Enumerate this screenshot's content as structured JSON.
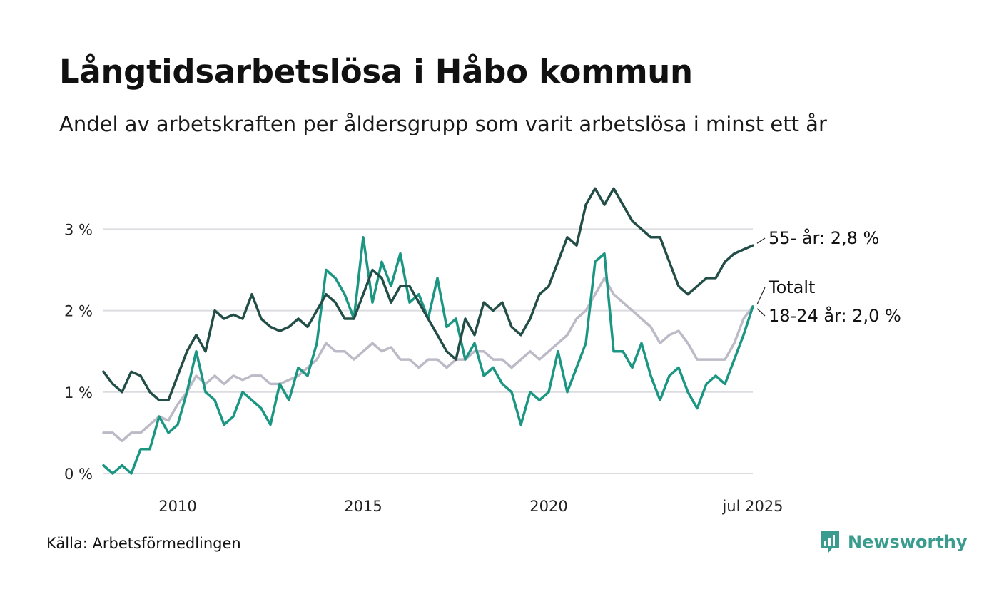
{
  "header": {
    "title": "Långtidsarbetslösa i Håbo kommun",
    "subtitle": "Andel av arbetskraften per åldersgrupp som varit arbetslösa i minst ett år"
  },
  "footer": {
    "source": "Källa: Arbetsförmedlingen",
    "brand": "Newsworthy",
    "brand_icon": "newsworthy-logo-icon",
    "brand_color": "#3a9c8e"
  },
  "chart_data": {
    "type": "line",
    "title": "Långtidsarbetslösa i Håbo kommun",
    "subtitle": "Andel av arbetskraften per åldersgrupp som varit arbetslösa i minst ett år",
    "xlabel": "",
    "ylabel": "",
    "x_range": [
      "2008-01",
      "2025-07"
    ],
    "ylim": [
      0,
      3.8
    ],
    "y_ticks": [
      {
        "value": 0,
        "label": "0 %"
      },
      {
        "value": 1,
        "label": "1 %"
      },
      {
        "value": 2,
        "label": "2 %"
      },
      {
        "value": 3,
        "label": "3 %"
      }
    ],
    "x_ticks": [
      {
        "value": "2010-01",
        "label": "2010"
      },
      {
        "value": "2015-01",
        "label": "2015"
      },
      {
        "value": "2020-01",
        "label": "2020"
      },
      {
        "value": "2025-07",
        "label": "jul 2025"
      }
    ],
    "grid": "horizontal",
    "legend": "end-labels",
    "series": [
      {
        "name": "Totalt",
        "end_label": "Totalt",
        "color": "#bdbac7",
        "points": [
          [
            "2008-01",
            0.5
          ],
          [
            "2008-04",
            0.5
          ],
          [
            "2008-07",
            0.4
          ],
          [
            "2008-10",
            0.5
          ],
          [
            "2009-01",
            0.5
          ],
          [
            "2009-04",
            0.6
          ],
          [
            "2009-07",
            0.7
          ],
          [
            "2009-10",
            0.65
          ],
          [
            "2010-01",
            0.85
          ],
          [
            "2010-04",
            1.0
          ],
          [
            "2010-07",
            1.2
          ],
          [
            "2010-10",
            1.1
          ],
          [
            "2011-01",
            1.2
          ],
          [
            "2011-04",
            1.1
          ],
          [
            "2011-07",
            1.2
          ],
          [
            "2011-10",
            1.15
          ],
          [
            "2012-01",
            1.2
          ],
          [
            "2012-04",
            1.2
          ],
          [
            "2012-07",
            1.1
          ],
          [
            "2012-10",
            1.1
          ],
          [
            "2013-01",
            1.15
          ],
          [
            "2013-04",
            1.2
          ],
          [
            "2013-07",
            1.3
          ],
          [
            "2013-10",
            1.4
          ],
          [
            "2014-01",
            1.6
          ],
          [
            "2014-04",
            1.5
          ],
          [
            "2014-07",
            1.5
          ],
          [
            "2014-10",
            1.4
          ],
          [
            "2015-01",
            1.5
          ],
          [
            "2015-04",
            1.6
          ],
          [
            "2015-07",
            1.5
          ],
          [
            "2015-10",
            1.55
          ],
          [
            "2016-01",
            1.4
          ],
          [
            "2016-04",
            1.4
          ],
          [
            "2016-07",
            1.3
          ],
          [
            "2016-10",
            1.4
          ],
          [
            "2017-01",
            1.4
          ],
          [
            "2017-04",
            1.3
          ],
          [
            "2017-07",
            1.4
          ],
          [
            "2017-10",
            1.4
          ],
          [
            "2018-01",
            1.5
          ],
          [
            "2018-04",
            1.5
          ],
          [
            "2018-07",
            1.4
          ],
          [
            "2018-10",
            1.4
          ],
          [
            "2019-01",
            1.3
          ],
          [
            "2019-04",
            1.4
          ],
          [
            "2019-07",
            1.5
          ],
          [
            "2019-10",
            1.4
          ],
          [
            "2020-01",
            1.5
          ],
          [
            "2020-04",
            1.6
          ],
          [
            "2020-07",
            1.7
          ],
          [
            "2020-10",
            1.9
          ],
          [
            "2021-01",
            2.0
          ],
          [
            "2021-04",
            2.2
          ],
          [
            "2021-07",
            2.4
          ],
          [
            "2021-10",
            2.2
          ],
          [
            "2022-01",
            2.1
          ],
          [
            "2022-04",
            2.0
          ],
          [
            "2022-07",
            1.9
          ],
          [
            "2022-10",
            1.8
          ],
          [
            "2023-01",
            1.6
          ],
          [
            "2023-04",
            1.7
          ],
          [
            "2023-07",
            1.75
          ],
          [
            "2023-10",
            1.6
          ],
          [
            "2024-01",
            1.4
          ],
          [
            "2024-04",
            1.4
          ],
          [
            "2024-07",
            1.4
          ],
          [
            "2024-10",
            1.4
          ],
          [
            "2025-01",
            1.6
          ],
          [
            "2025-04",
            1.9
          ],
          [
            "2025-07",
            2.05
          ]
        ]
      },
      {
        "name": "18-24 år",
        "end_label": "18-24 år: 2,0 %",
        "color": "#1a9683",
        "points": [
          [
            "2008-01",
            0.1
          ],
          [
            "2008-04",
            0.0
          ],
          [
            "2008-07",
            0.1
          ],
          [
            "2008-10",
            0.0
          ],
          [
            "2009-01",
            0.3
          ],
          [
            "2009-04",
            0.3
          ],
          [
            "2009-07",
            0.7
          ],
          [
            "2009-10",
            0.5
          ],
          [
            "2010-01",
            0.6
          ],
          [
            "2010-04",
            1.0
          ],
          [
            "2010-07",
            1.5
          ],
          [
            "2010-10",
            1.0
          ],
          [
            "2011-01",
            0.9
          ],
          [
            "2011-04",
            0.6
          ],
          [
            "2011-07",
            0.7
          ],
          [
            "2011-10",
            1.0
          ],
          [
            "2012-01",
            0.9
          ],
          [
            "2012-04",
            0.8
          ],
          [
            "2012-07",
            0.6
          ],
          [
            "2012-10",
            1.1
          ],
          [
            "2013-01",
            0.9
          ],
          [
            "2013-04",
            1.3
          ],
          [
            "2013-07",
            1.2
          ],
          [
            "2013-10",
            1.6
          ],
          [
            "2014-01",
            2.5
          ],
          [
            "2014-04",
            2.4
          ],
          [
            "2014-07",
            2.2
          ],
          [
            "2014-10",
            1.9
          ],
          [
            "2015-01",
            2.9
          ],
          [
            "2015-04",
            2.1
          ],
          [
            "2015-07",
            2.6
          ],
          [
            "2015-10",
            2.3
          ],
          [
            "2016-01",
            2.7
          ],
          [
            "2016-04",
            2.1
          ],
          [
            "2016-07",
            2.2
          ],
          [
            "2016-10",
            1.9
          ],
          [
            "2017-01",
            2.4
          ],
          [
            "2017-04",
            1.8
          ],
          [
            "2017-07",
            1.9
          ],
          [
            "2017-10",
            1.4
          ],
          [
            "2018-01",
            1.6
          ],
          [
            "2018-04",
            1.2
          ],
          [
            "2018-07",
            1.3
          ],
          [
            "2018-10",
            1.1
          ],
          [
            "2019-01",
            1.0
          ],
          [
            "2019-04",
            0.6
          ],
          [
            "2019-07",
            1.0
          ],
          [
            "2019-10",
            0.9
          ],
          [
            "2020-01",
            1.0
          ],
          [
            "2020-04",
            1.5
          ],
          [
            "2020-07",
            1.0
          ],
          [
            "2020-10",
            1.3
          ],
          [
            "2021-01",
            1.6
          ],
          [
            "2021-04",
            2.6
          ],
          [
            "2021-07",
            2.7
          ],
          [
            "2021-10",
            1.5
          ],
          [
            "2022-01",
            1.5
          ],
          [
            "2022-04",
            1.3
          ],
          [
            "2022-07",
            1.6
          ],
          [
            "2022-10",
            1.2
          ],
          [
            "2023-01",
            0.9
          ],
          [
            "2023-04",
            1.2
          ],
          [
            "2023-07",
            1.3
          ],
          [
            "2023-10",
            1.0
          ],
          [
            "2024-01",
            0.8
          ],
          [
            "2024-04",
            1.1
          ],
          [
            "2024-07",
            1.2
          ],
          [
            "2024-10",
            1.1
          ],
          [
            "2025-01",
            1.4
          ],
          [
            "2025-04",
            1.7
          ],
          [
            "2025-07",
            2.05
          ]
        ]
      },
      {
        "name": "55- år",
        "end_label": "55- år: 2,8 %",
        "color": "#234e47",
        "points": [
          [
            "2008-01",
            1.25
          ],
          [
            "2008-04",
            1.1
          ],
          [
            "2008-07",
            1.0
          ],
          [
            "2008-10",
            1.25
          ],
          [
            "2009-01",
            1.2
          ],
          [
            "2009-04",
            1.0
          ],
          [
            "2009-07",
            0.9
          ],
          [
            "2009-10",
            0.9
          ],
          [
            "2010-01",
            1.2
          ],
          [
            "2010-04",
            1.5
          ],
          [
            "2010-07",
            1.7
          ],
          [
            "2010-10",
            1.5
          ],
          [
            "2011-01",
            2.0
          ],
          [
            "2011-04",
            1.9
          ],
          [
            "2011-07",
            1.95
          ],
          [
            "2011-10",
            1.9
          ],
          [
            "2012-01",
            2.2
          ],
          [
            "2012-04",
            1.9
          ],
          [
            "2012-07",
            1.8
          ],
          [
            "2012-10",
            1.75
          ],
          [
            "2013-01",
            1.8
          ],
          [
            "2013-04",
            1.9
          ],
          [
            "2013-07",
            1.8
          ],
          [
            "2013-10",
            2.0
          ],
          [
            "2014-01",
            2.2
          ],
          [
            "2014-04",
            2.1
          ],
          [
            "2014-07",
            1.9
          ],
          [
            "2014-10",
            1.9
          ],
          [
            "2015-01",
            2.2
          ],
          [
            "2015-04",
            2.5
          ],
          [
            "2015-07",
            2.4
          ],
          [
            "2015-10",
            2.1
          ],
          [
            "2016-01",
            2.3
          ],
          [
            "2016-04",
            2.3
          ],
          [
            "2016-07",
            2.1
          ],
          [
            "2016-10",
            1.9
          ],
          [
            "2017-01",
            1.7
          ],
          [
            "2017-04",
            1.5
          ],
          [
            "2017-07",
            1.4
          ],
          [
            "2017-10",
            1.9
          ],
          [
            "2018-01",
            1.7
          ],
          [
            "2018-04",
            2.1
          ],
          [
            "2018-07",
            2.0
          ],
          [
            "2018-10",
            2.1
          ],
          [
            "2019-01",
            1.8
          ],
          [
            "2019-04",
            1.7
          ],
          [
            "2019-07",
            1.9
          ],
          [
            "2019-10",
            2.2
          ],
          [
            "2020-01",
            2.3
          ],
          [
            "2020-04",
            2.6
          ],
          [
            "2020-07",
            2.9
          ],
          [
            "2020-10",
            2.8
          ],
          [
            "2021-01",
            3.3
          ],
          [
            "2021-04",
            3.5
          ],
          [
            "2021-07",
            3.3
          ],
          [
            "2021-10",
            3.5
          ],
          [
            "2022-01",
            3.3
          ],
          [
            "2022-04",
            3.1
          ],
          [
            "2022-07",
            3.0
          ],
          [
            "2022-10",
            2.9
          ],
          [
            "2023-01",
            2.9
          ],
          [
            "2023-04",
            2.6
          ],
          [
            "2023-07",
            2.3
          ],
          [
            "2023-10",
            2.2
          ],
          [
            "2024-01",
            2.3
          ],
          [
            "2024-04",
            2.4
          ],
          [
            "2024-07",
            2.4
          ],
          [
            "2024-10",
            2.6
          ],
          [
            "2025-01",
            2.7
          ],
          [
            "2025-04",
            2.75
          ],
          [
            "2025-07",
            2.8
          ]
        ]
      }
    ]
  }
}
